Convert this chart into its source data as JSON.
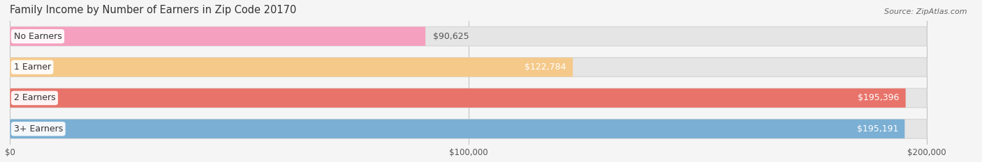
{
  "title": "Family Income by Number of Earners in Zip Code 20170",
  "source": "Source: ZipAtlas.com",
  "categories": [
    "No Earners",
    "1 Earner",
    "2 Earners",
    "3+ Earners"
  ],
  "values": [
    90625,
    122784,
    195396,
    195191
  ],
  "bar_colors": [
    "#F5A0BE",
    "#F5C98A",
    "#E8736A",
    "#7BAFD4"
  ],
  "value_labels": [
    "$90,625",
    "$122,784",
    "$195,396",
    "$195,191"
  ],
  "label_text_colors": [
    "#555555",
    "#ffffff",
    "#ffffff",
    "#ffffff"
  ],
  "xlim": [
    0,
    200000
  ],
  "max_display": 200000,
  "xtick_values": [
    0,
    100000,
    200000
  ],
  "xtick_labels": [
    "$0",
    "$100,000",
    "$200,000"
  ],
  "background_color": "#f5f5f5",
  "bar_bg_color": "#e5e5e5",
  "bar_bg_border": "#d8d8d8",
  "title_fontsize": 10.5,
  "source_fontsize": 8,
  "cat_label_fontsize": 9,
  "value_fontsize": 9
}
